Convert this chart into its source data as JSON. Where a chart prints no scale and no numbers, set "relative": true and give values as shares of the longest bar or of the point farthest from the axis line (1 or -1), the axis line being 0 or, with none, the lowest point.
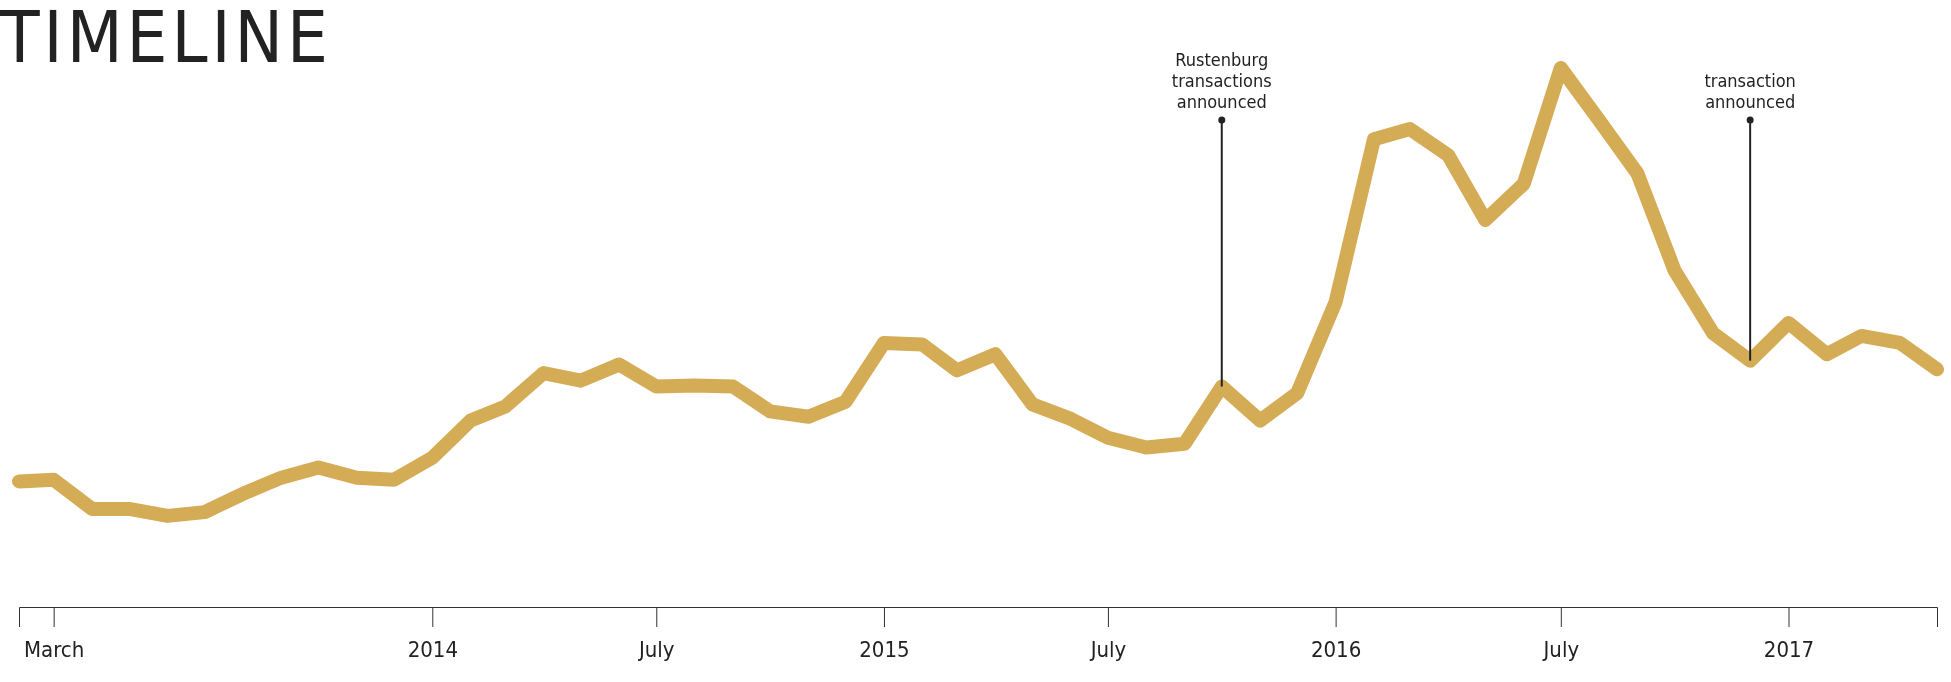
{
  "chart_data": {
    "type": "line",
    "title": "TIMELINE",
    "relative": true,
    "x": [
      "2013-02",
      "2013-03",
      "2013-04",
      "2013-05",
      "2013-06",
      "2013-07",
      "2013-08",
      "2013-09",
      "2013-10",
      "2013-11",
      "2013-12",
      "2014-01",
      "2014-02",
      "2014-03",
      "2014-04",
      "2014-05",
      "2014-06",
      "2014-07",
      "2014-08",
      "2014-09",
      "2014-10",
      "2014-11",
      "2014-12",
      "2015-01",
      "2015-02",
      "2015-03",
      "2015-04",
      "2015-05",
      "2015-06",
      "2015-07",
      "2015-08",
      "2015-09",
      "2015-10",
      "2015-11",
      "2015-12",
      "2016-01",
      "2016-02",
      "2016-03",
      "2016-04",
      "2016-05",
      "2016-06",
      "2016-07",
      "2016-08",
      "2016-09",
      "2016-10",
      "2016-11",
      "2016-12",
      "2017-01",
      "2017-02",
      "2017-03",
      "2017-04",
      "2017-05"
    ],
    "series": [
      {
        "color": "#d4ac55",
        "values": [
          0.233,
          0.236,
          0.182,
          0.182,
          0.169,
          0.176,
          0.21,
          0.24,
          0.259,
          0.24,
          0.236,
          0.277,
          0.346,
          0.372,
          0.434,
          0.42,
          0.45,
          0.409,
          0.411,
          0.409,
          0.363,
          0.353,
          0.381,
          0.49,
          0.487,
          0.439,
          0.469,
          0.376,
          0.349,
          0.314,
          0.296,
          0.303,
          0.409,
          0.346,
          0.397,
          0.566,
          0.868,
          0.887,
          0.838,
          0.718,
          0.785,
          1,
          0.903,
          0.804,
          0.624,
          0.508,
          0.457,
          0.527,
          0.469,
          0.503,
          0.49,
          0.441
        ]
      }
    ],
    "xlim": [
      "2013-02",
      "2017-05"
    ],
    "xticks": [
      {
        "value": "2013-03",
        "label": "March"
      },
      {
        "value": "2014-01",
        "label": "2014"
      },
      {
        "value": "2014-07",
        "label": "July"
      },
      {
        "value": "2015-01",
        "label": "2015"
      },
      {
        "value": "2015-07",
        "label": "July"
      },
      {
        "value": "2016-01",
        "label": "2016"
      },
      {
        "value": "2016-07",
        "label": "July"
      },
      {
        "value": "2017-01",
        "label": "2017"
      }
    ],
    "annotations": [
      {
        "text": "Rustenburg transactions announced",
        "x": "2015-10",
        "y": 0.409
      },
      {
        "text": "transaction announced",
        "x": "2016-12",
        "y": 0.457
      }
    ],
    "line_style": "solid"
  }
}
